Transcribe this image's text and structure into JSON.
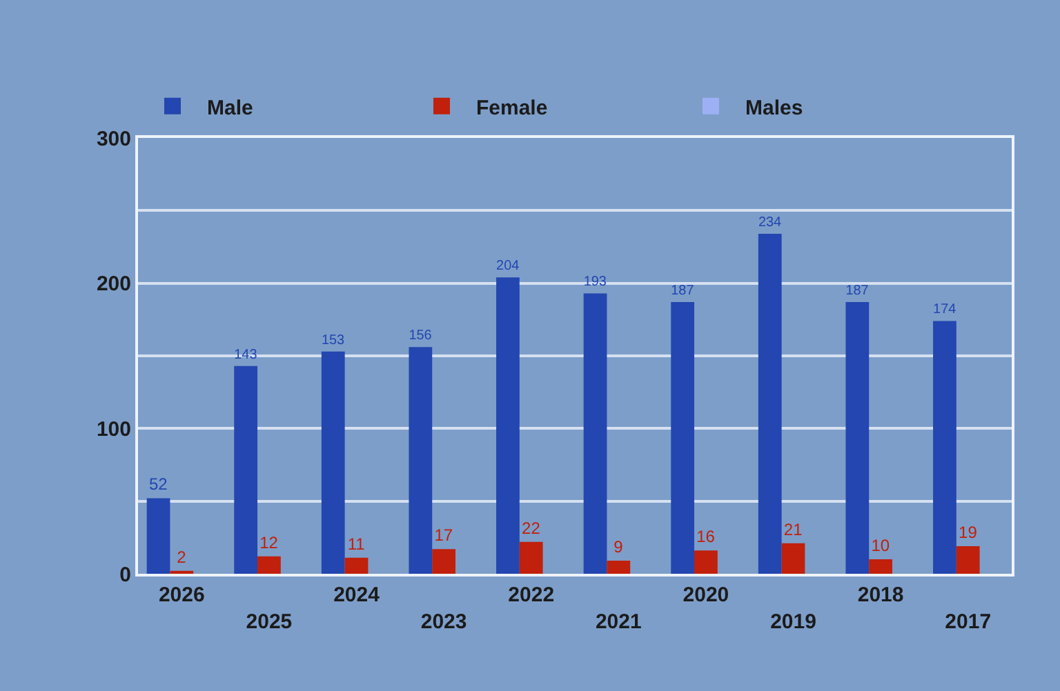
{
  "chart_data": {
    "type": "bar",
    "categories": [
      "2026",
      "2025",
      "2024",
      "2023",
      "2022",
      "2021",
      "2020",
      "2019",
      "2018",
      "2017"
    ],
    "series": [
      {
        "name": "Male",
        "color": "#2346b0",
        "values": [
          52,
          143,
          153,
          156,
          204,
          193,
          187,
          234,
          187,
          174
        ]
      },
      {
        "name": "Female",
        "color": "#c0200c",
        "values": [
          2,
          12,
          11,
          17,
          22,
          9,
          16,
          21,
          10,
          19
        ]
      },
      {
        "name": "Males",
        "color": "#9db0f5",
        "values": [
          null,
          null,
          null,
          null,
          null,
          null,
          null,
          null,
          null,
          null
        ]
      }
    ],
    "ylim": [
      0,
      300
    ],
    "yticks": [
      0,
      {
        "value": 50,
        "label": null
      },
      100,
      {
        "value": 150,
        "label": null
      },
      200,
      {
        "value": 250,
        "label": null
      },
      300
    ],
    "grid": "y",
    "legend": "top left",
    "data_labels": true
  }
}
